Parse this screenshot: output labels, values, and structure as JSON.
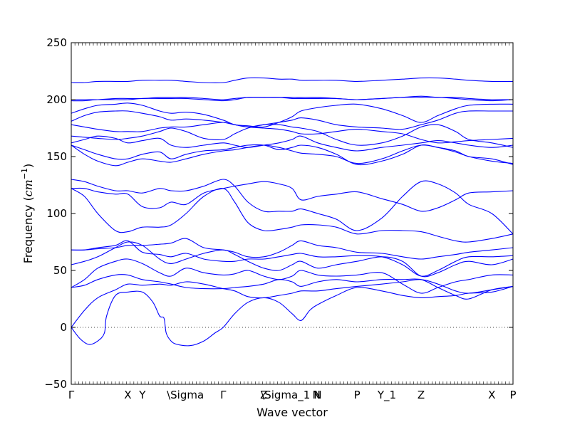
{
  "chart_data": {
    "type": "line",
    "xlabel": "Wave vector",
    "ylabel": "Frequency (",
    "ylabel_math": "cm",
    "ylabel_sup": "−1",
    "ylabel_close": ")",
    "ylim": [
      -50,
      250
    ],
    "yticks": [
      -50,
      0,
      50,
      100,
      150,
      200,
      250
    ],
    "xlim": [
      0,
      1
    ],
    "zero_line": true,
    "line_color": "#0000ff",
    "k_points": [
      {
        "label": "Γ",
        "x": 0.0
      },
      {
        "label": "X",
        "x": 0.128
      },
      {
        "label": "Y",
        "x": 0.161
      },
      {
        "label": "\\Sigma",
        "x": 0.226
      },
      {
        "label": "Γ",
        "x": 0.344
      },
      {
        "label": "Z",
        "x": 0.436
      },
      {
        "label": "\\Sigma_1",
        "x": 0.439
      },
      {
        "label": "N",
        "x": 0.555
      },
      {
        "label": "N",
        "x": 0.558
      },
      {
        "label": "P",
        "x": 0.647
      },
      {
        "label": "Y_1",
        "x": 0.703
      },
      {
        "label": "Z",
        "x": 0.792
      },
      {
        "label": "X",
        "x": 0.952
      },
      {
        "label": "P",
        "x": 1.0
      }
    ],
    "series": [
      {
        "x": [
          0,
          0.02,
          0.04,
          0.06,
          0.075,
          0.08,
          0.1,
          0.128,
          0.161,
          0.185,
          0.2,
          0.21,
          0.215,
          0.226,
          0.24,
          0.27,
          0.3,
          0.325,
          0.344,
          0.37,
          0.4,
          0.436,
          0.47,
          0.5,
          0.52,
          0.54,
          0.558,
          0.6,
          0.647,
          0.703,
          0.75,
          0.792,
          0.83,
          0.87,
          0.9,
          0.952,
          1.0
        ],
        "y": [
          0,
          -10,
          -15,
          -12,
          -5,
          10,
          28,
          31,
          31,
          22,
          10,
          8,
          -5,
          -12,
          -15,
          -16,
          -12,
          -5,
          0,
          12,
          22,
          26,
          22,
          12,
          6,
          15,
          20,
          28,
          35,
          32,
          28,
          26,
          27,
          28,
          30,
          31,
          36
        ]
      },
      {
        "x": [
          0,
          0.03,
          0.06,
          0.1,
          0.128,
          0.161,
          0.2,
          0.226,
          0.26,
          0.3,
          0.344,
          0.37,
          0.4,
          0.436,
          0.47,
          0.5,
          0.52,
          0.558,
          0.6,
          0.647,
          0.703,
          0.75,
          0.792,
          0.83,
          0.87,
          0.9,
          0.952,
          1.0
        ],
        "y": [
          0,
          15,
          26,
          33,
          38,
          37,
          38,
          37,
          40,
          38,
          34,
          32,
          27,
          26,
          28,
          30,
          32,
          32,
          34,
          36,
          38,
          40,
          42,
          38,
          32,
          30,
          33,
          36
        ]
      },
      {
        "x": [
          0,
          0.03,
          0.06,
          0.1,
          0.128,
          0.161,
          0.2,
          0.226,
          0.26,
          0.3,
          0.344,
          0.37,
          0.4,
          0.436,
          0.47,
          0.5,
          0.52,
          0.558,
          0.6,
          0.647,
          0.703,
          0.75,
          0.792,
          0.83,
          0.87,
          0.9,
          0.952,
          1.0
        ],
        "y": [
          35,
          37,
          42,
          46,
          46,
          42,
          40,
          38,
          35,
          34,
          34,
          35,
          36,
          38,
          42,
          40,
          36,
          40,
          42,
          40,
          42,
          42,
          42,
          35,
          28,
          25,
          33,
          36
        ]
      },
      {
        "x": [
          0,
          0.03,
          0.06,
          0.1,
          0.128,
          0.161,
          0.2,
          0.226,
          0.26,
          0.3,
          0.344,
          0.37,
          0.4,
          0.436,
          0.47,
          0.5,
          0.52,
          0.558,
          0.6,
          0.647,
          0.703,
          0.75,
          0.792,
          0.83,
          0.87,
          0.9,
          0.952,
          1.0
        ],
        "y": [
          35,
          42,
          52,
          58,
          60,
          56,
          48,
          45,
          52,
          48,
          46,
          47,
          50,
          45,
          42,
          45,
          50,
          46,
          45,
          46,
          48,
          38,
          30,
          35,
          40,
          42,
          46,
          46
        ]
      },
      {
        "x": [
          0,
          0.03,
          0.06,
          0.1,
          0.128,
          0.161,
          0.2,
          0.226,
          0.26,
          0.3,
          0.344,
          0.37,
          0.4,
          0.436,
          0.47,
          0.5,
          0.52,
          0.558,
          0.6,
          0.647,
          0.703,
          0.75,
          0.792,
          0.83,
          0.87,
          0.9,
          0.952,
          1.0
        ],
        "y": [
          55,
          58,
          62,
          70,
          75,
          72,
          60,
          56,
          60,
          65,
          68,
          64,
          58,
          52,
          50,
          55,
          58,
          52,
          55,
          58,
          62,
          58,
          45,
          48,
          55,
          58,
          55,
          60
        ]
      },
      {
        "x": [
          0,
          0.03,
          0.06,
          0.1,
          0.128,
          0.161,
          0.2,
          0.226,
          0.26,
          0.3,
          0.344,
          0.37,
          0.4,
          0.436,
          0.47,
          0.5,
          0.52,
          0.558,
          0.6,
          0.647,
          0.703,
          0.75,
          0.792,
          0.83,
          0.87,
          0.9,
          0.952,
          1.0
        ],
        "y": [
          68,
          68,
          70,
          72,
          76,
          66,
          64,
          62,
          65,
          60,
          58,
          58,
          60,
          60,
          62,
          64,
          65,
          62,
          62,
          63,
          62,
          55,
          45,
          50,
          58,
          62,
          62,
          63
        ]
      },
      {
        "x": [
          0,
          0.03,
          0.06,
          0.1,
          0.128,
          0.161,
          0.2,
          0.226,
          0.26,
          0.3,
          0.344,
          0.37,
          0.4,
          0.436,
          0.47,
          0.5,
          0.52,
          0.558,
          0.6,
          0.647,
          0.703,
          0.75,
          0.792,
          0.83,
          0.87,
          0.9,
          0.952,
          1.0
        ],
        "y": [
          68,
          68,
          69,
          70,
          72,
          72,
          73,
          74,
          78,
          70,
          68,
          66,
          62,
          62,
          66,
          72,
          76,
          72,
          70,
          66,
          65,
          62,
          60,
          62,
          64,
          66,
          68,
          70
        ]
      },
      {
        "x": [
          0,
          0.03,
          0.06,
          0.1,
          0.128,
          0.161,
          0.2,
          0.226,
          0.26,
          0.3,
          0.344,
          0.37,
          0.4,
          0.436,
          0.47,
          0.5,
          0.52,
          0.558,
          0.6,
          0.647,
          0.703,
          0.75,
          0.792,
          0.83,
          0.87,
          0.9,
          0.952,
          1.0
        ],
        "y": [
          122,
          115,
          100,
          85,
          84,
          88,
          88,
          90,
          100,
          115,
          122,
          110,
          92,
          85,
          86,
          88,
          90,
          90,
          88,
          82,
          85,
          85,
          84,
          80,
          76,
          75,
          78,
          82
        ]
      },
      {
        "x": [
          0,
          0.03,
          0.06,
          0.1,
          0.128,
          0.161,
          0.2,
          0.226,
          0.26,
          0.3,
          0.344,
          0.37,
          0.4,
          0.436,
          0.47,
          0.5,
          0.52,
          0.558,
          0.6,
          0.647,
          0.703,
          0.75,
          0.792,
          0.83,
          0.87,
          0.9,
          0.952,
          1.0
        ],
        "y": [
          122,
          122,
          119,
          117,
          117,
          106,
          105,
          110,
          108,
          118,
          122,
          124,
          126,
          128,
          126,
          122,
          112,
          115,
          117,
          119,
          113,
          108,
          102,
          105,
          112,
          118,
          119,
          120
        ]
      },
      {
        "x": [
          0,
          0.03,
          0.06,
          0.1,
          0.128,
          0.161,
          0.2,
          0.226,
          0.26,
          0.3,
          0.344,
          0.37,
          0.4,
          0.436,
          0.47,
          0.5,
          0.52,
          0.558,
          0.6,
          0.647,
          0.703,
          0.75,
          0.792,
          0.83,
          0.87,
          0.9,
          0.952,
          1.0
        ],
        "y": [
          130,
          128,
          124,
          120,
          120,
          118,
          122,
          120,
          120,
          124,
          130,
          124,
          110,
          102,
          102,
          102,
          104,
          100,
          95,
          85,
          96,
          115,
          128,
          126,
          118,
          108,
          100,
          82
        ]
      },
      {
        "x": [
          0,
          0.03,
          0.06,
          0.1,
          0.128,
          0.161,
          0.2,
          0.226,
          0.26,
          0.3,
          0.344,
          0.37,
          0.4,
          0.436,
          0.47,
          0.5,
          0.52,
          0.558,
          0.6,
          0.647,
          0.703,
          0.75,
          0.792,
          0.83,
          0.87,
          0.9,
          0.952,
          1.0
        ],
        "y": [
          160,
          152,
          146,
          142,
          145,
          148,
          146,
          145,
          148,
          152,
          155,
          156,
          158,
          160,
          158,
          155,
          153,
          152,
          150,
          144,
          148,
          155,
          160,
          158,
          154,
          150,
          146,
          144
        ]
      },
      {
        "x": [
          0,
          0.03,
          0.06,
          0.1,
          0.128,
          0.161,
          0.2,
          0.226,
          0.26,
          0.3,
          0.344,
          0.37,
          0.4,
          0.436,
          0.47,
          0.5,
          0.52,
          0.558,
          0.6,
          0.647,
          0.703,
          0.75,
          0.792,
          0.83,
          0.87,
          0.9,
          0.952,
          1.0
        ],
        "y": [
          160,
          156,
          152,
          148,
          148,
          152,
          154,
          148,
          152,
          155,
          156,
          158,
          160,
          160,
          156,
          158,
          160,
          158,
          152,
          143,
          146,
          152,
          160,
          158,
          155,
          150,
          148,
          143
        ]
      },
      {
        "x": [
          0,
          0.03,
          0.06,
          0.1,
          0.128,
          0.161,
          0.2,
          0.226,
          0.26,
          0.3,
          0.344,
          0.37,
          0.4,
          0.436,
          0.47,
          0.5,
          0.52,
          0.558,
          0.6,
          0.647,
          0.703,
          0.75,
          0.792,
          0.83,
          0.87,
          0.9,
          0.952,
          1.0
        ],
        "y": [
          162,
          165,
          168,
          166,
          162,
          164,
          166,
          160,
          158,
          160,
          162,
          160,
          158,
          160,
          162,
          165,
          168,
          162,
          158,
          155,
          158,
          160,
          162,
          164,
          162,
          160,
          158,
          160
        ]
      },
      {
        "x": [
          0,
          0.03,
          0.06,
          0.1,
          0.128,
          0.161,
          0.2,
          0.226,
          0.26,
          0.3,
          0.344,
          0.37,
          0.4,
          0.436,
          0.47,
          0.5,
          0.52,
          0.558,
          0.6,
          0.647,
          0.703,
          0.75,
          0.792,
          0.83,
          0.87,
          0.9,
          0.952,
          1.0
        ],
        "y": [
          168,
          167,
          166,
          165,
          166,
          168,
          172,
          175,
          172,
          166,
          165,
          170,
          175,
          178,
          178,
          176,
          175,
          172,
          165,
          160,
          162,
          168,
          176,
          178,
          172,
          165,
          162,
          158
        ]
      },
      {
        "x": [
          0,
          0.03,
          0.06,
          0.1,
          0.128,
          0.161,
          0.2,
          0.226,
          0.26,
          0.3,
          0.344,
          0.37,
          0.4,
          0.436,
          0.47,
          0.5,
          0.52,
          0.558,
          0.6,
          0.647,
          0.703,
          0.75,
          0.792,
          0.83,
          0.87,
          0.9,
          0.952,
          1.0
        ],
        "y": [
          178,
          176,
          174,
          172,
          172,
          172,
          175,
          176,
          176,
          178,
          180,
          178,
          176,
          175,
          174,
          172,
          170,
          170,
          172,
          174,
          172,
          170,
          165,
          162,
          163,
          164,
          165,
          166
        ]
      },
      {
        "x": [
          0,
          0.03,
          0.06,
          0.1,
          0.128,
          0.161,
          0.2,
          0.226,
          0.26,
          0.3,
          0.344,
          0.37,
          0.4,
          0.436,
          0.47,
          0.5,
          0.52,
          0.558,
          0.6,
          0.647,
          0.703,
          0.75,
          0.792,
          0.83,
          0.87,
          0.9,
          0.952,
          1.0
        ],
        "y": [
          181,
          186,
          189,
          190,
          190,
          188,
          185,
          182,
          183,
          182,
          180,
          178,
          176,
          178,
          180,
          182,
          184,
          182,
          178,
          176,
          175,
          174,
          178,
          182,
          188,
          190,
          190,
          190
        ]
      },
      {
        "x": [
          0,
          0.03,
          0.06,
          0.1,
          0.128,
          0.161,
          0.2,
          0.226,
          0.26,
          0.3,
          0.344,
          0.37,
          0.4,
          0.436,
          0.47,
          0.5,
          0.52,
          0.558,
          0.6,
          0.647,
          0.703,
          0.75,
          0.792,
          0.83,
          0.87,
          0.9,
          0.952,
          1.0
        ],
        "y": [
          188,
          192,
          195,
          196,
          197,
          195,
          190,
          188,
          189,
          187,
          182,
          178,
          177,
          176,
          180,
          185,
          190,
          193,
          195,
          196,
          192,
          186,
          180,
          186,
          192,
          195,
          196,
          196
        ]
      },
      {
        "x": [
          0,
          0.03,
          0.06,
          0.1,
          0.128,
          0.161,
          0.2,
          0.226,
          0.26,
          0.3,
          0.344,
          0.37,
          0.4,
          0.436,
          0.47,
          0.5,
          0.52,
          0.558,
          0.6,
          0.647,
          0.703,
          0.75,
          0.792,
          0.83,
          0.87,
          0.9,
          0.952,
          1.0
        ],
        "y": [
          199,
          199,
          200,
          200,
          200,
          201,
          201,
          201,
          201,
          200,
          199,
          200,
          202,
          202,
          202,
          201,
          201,
          201,
          201,
          200,
          201,
          202,
          202,
          202,
          201,
          200,
          199,
          200
        ]
      },
      {
        "x": [
          0,
          0.03,
          0.06,
          0.1,
          0.128,
          0.161,
          0.2,
          0.226,
          0.26,
          0.3,
          0.344,
          0.37,
          0.4,
          0.436,
          0.47,
          0.5,
          0.52,
          0.558,
          0.6,
          0.647,
          0.703,
          0.75,
          0.792,
          0.83,
          0.87,
          0.9,
          0.952,
          1.0
        ],
        "y": [
          200,
          200,
          200,
          201,
          201,
          201,
          202,
          202,
          202,
          201,
          200,
          201,
          202,
          202,
          202,
          202,
          202,
          202,
          201,
          200,
          201,
          202,
          203,
          202,
          202,
          201,
          200,
          200
        ]
      },
      {
        "x": [
          0,
          0.03,
          0.06,
          0.1,
          0.128,
          0.161,
          0.2,
          0.226,
          0.26,
          0.3,
          0.344,
          0.37,
          0.4,
          0.436,
          0.47,
          0.5,
          0.52,
          0.558,
          0.6,
          0.647,
          0.703,
          0.75,
          0.792,
          0.83,
          0.87,
          0.9,
          0.952,
          1.0
        ],
        "y": [
          215,
          215,
          216,
          216,
          216,
          217,
          217,
          217,
          216,
          215,
          215,
          217,
          219,
          219,
          218,
          218,
          217,
          217,
          217,
          216,
          217,
          218,
          219,
          219,
          218,
          217,
          216,
          216
        ]
      }
    ]
  }
}
